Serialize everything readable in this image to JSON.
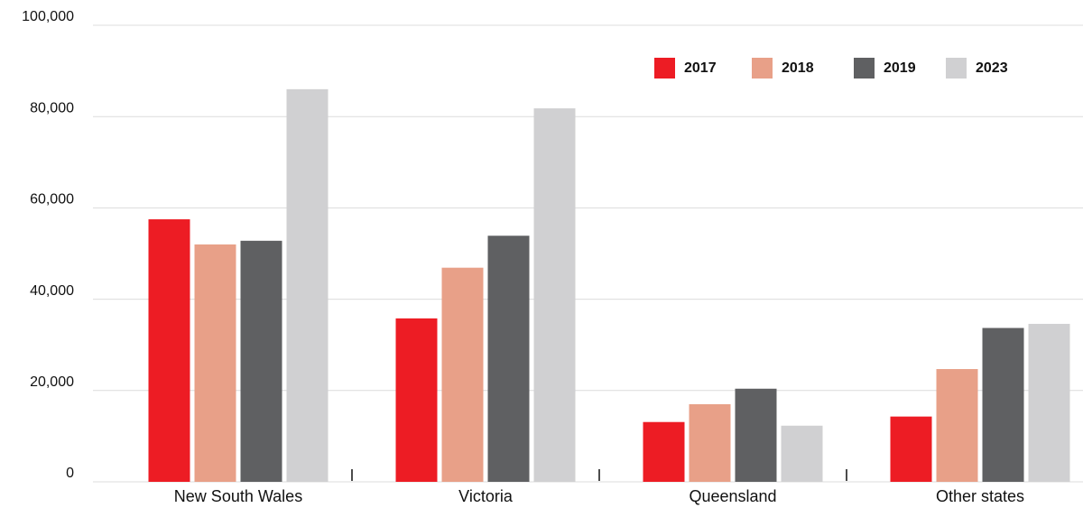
{
  "chart_data": {
    "type": "bar",
    "categories": [
      "New South Wales",
      "Victoria",
      "Queensland",
      "Other states"
    ],
    "series": [
      {
        "name": "2017",
        "color": "#ed1c24",
        "values": [
          57500,
          35800,
          13100,
          14300
        ]
      },
      {
        "name": "2018",
        "color": "#e8a088",
        "values": [
          52000,
          46900,
          17000,
          24700
        ]
      },
      {
        "name": "2019",
        "color": "#5f6062",
        "values": [
          52800,
          53900,
          20400,
          33700
        ]
      },
      {
        "name": "2023",
        "color": "#d0d0d2",
        "values": [
          86000,
          81800,
          12300,
          34600
        ]
      }
    ],
    "ylim": [
      0,
      100000
    ],
    "yticks": [
      0,
      {
        "value": 20000,
        "label": "20,000"
      },
      {
        "value": 40000,
        "label": "40,000"
      },
      {
        "value": 60000,
        "label": "60,000"
      },
      {
        "value": 80000,
        "label": "80,000"
      },
      {
        "value": 100000,
        "label": "100,000"
      }
    ],
    "grid": true,
    "legend": "top-right"
  }
}
